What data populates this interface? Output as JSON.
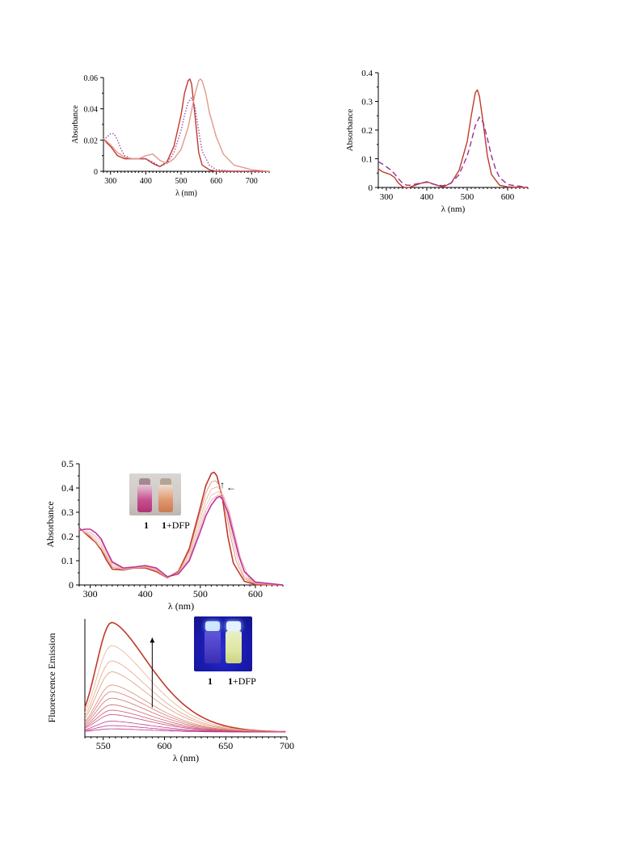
{
  "charts": [
    {
      "id": "p1",
      "chart_data": {
        "type": "line",
        "title": "",
        "xlabel": "λ (nm)",
        "ylabel": "Absorbance",
        "xlim": [
          280,
          750
        ],
        "ylim": [
          0,
          0.06
        ],
        "xticks": [
          300,
          400,
          500,
          600,
          700
        ],
        "yticks": [
          0,
          0.02,
          0.04,
          0.06
        ],
        "ytick_labels": [
          "0",
          "0.02",
          "0.04",
          "0.06"
        ],
        "series": [
          {
            "color": "#c0392b",
            "style": "solid",
            "x": [
              280,
              290,
              300,
              310,
              320,
              330,
              340,
              360,
              380,
              400,
              420,
              440,
              460,
              480,
              500,
              510,
              520,
              525,
              530,
              540,
              550,
              560,
              580,
              600,
              650,
              700,
              750
            ],
            "y": [
              0.021,
              0.018,
              0.016,
              0.013,
              0.01,
              0.009,
              0.008,
              0.008,
              0.008,
              0.008,
              0.005,
              0.003,
              0.006,
              0.016,
              0.036,
              0.05,
              0.058,
              0.059,
              0.056,
              0.035,
              0.012,
              0.004,
              0.001,
              0.0,
              0.0,
              0.0,
              0.0
            ]
          },
          {
            "color": "#a04aa0",
            "style": "dotted",
            "x": [
              280,
              290,
              300,
              310,
              320,
              330,
              340,
              360,
              380,
              400,
              420,
              440,
              460,
              480,
              500,
              510,
              520,
              530,
              540,
              550,
              560,
              580,
              600,
              650,
              700,
              750
            ],
            "y": [
              0.02,
              0.022,
              0.024,
              0.024,
              0.02,
              0.014,
              0.01,
              0.008,
              0.008,
              0.008,
              0.006,
              0.003,
              0.005,
              0.012,
              0.026,
              0.036,
              0.044,
              0.047,
              0.041,
              0.026,
              0.013,
              0.004,
              0.001,
              0.0,
              0.0,
              0.0
            ]
          },
          {
            "color": "#e29a8c",
            "style": "solid",
            "x": [
              280,
              290,
              300,
              320,
              340,
              360,
              380,
              400,
              420,
              440,
              460,
              480,
              500,
              520,
              540,
              550,
              555,
              560,
              570,
              580,
              600,
              620,
              650,
              700,
              750
            ],
            "y": [
              0.021,
              0.019,
              0.017,
              0.012,
              0.009,
              0.008,
              0.008,
              0.01,
              0.011,
              0.007,
              0.005,
              0.008,
              0.014,
              0.028,
              0.05,
              0.058,
              0.059,
              0.058,
              0.05,
              0.038,
              0.022,
              0.011,
              0.004,
              0.001,
              0.0
            ]
          }
        ]
      }
    },
    {
      "id": "p2",
      "chart_data": {
        "type": "line",
        "title": "",
        "xlabel": "λ (nm)",
        "ylabel": "Absorbance",
        "xlim": [
          280,
          650
        ],
        "ylim": [
          0,
          0.4
        ],
        "xticks": [
          300,
          400,
          500,
          600
        ],
        "yticks": [
          0,
          0.1,
          0.2,
          0.3,
          0.4
        ],
        "ytick_labels": [
          "0",
          "0.1",
          "0.2",
          "0.3",
          "0.4"
        ],
        "series": [
          {
            "color": "#c0392b",
            "style": "solid",
            "x": [
              280,
              290,
              300,
              310,
              320,
              330,
              340,
              350,
              360,
              380,
              400,
              420,
              440,
              460,
              480,
              500,
              510,
              520,
              525,
              530,
              540,
              550,
              560,
              580,
              600,
              650
            ],
            "y": [
              0.065,
              0.055,
              0.05,
              0.045,
              0.035,
              0.015,
              0.003,
              -0.002,
              0.002,
              0.012,
              0.02,
              0.01,
              0.002,
              0.015,
              0.06,
              0.16,
              0.25,
              0.33,
              0.34,
              0.32,
              0.22,
              0.11,
              0.045,
              0.008,
              0.002,
              0.0
            ]
          },
          {
            "color": "#9b2f9b",
            "style": "dashed",
            "x": [
              280,
              290,
              300,
              310,
              320,
              330,
              340,
              350,
              360,
              380,
              400,
              420,
              440,
              460,
              480,
              500,
              510,
              520,
              530,
              540,
              550,
              560,
              570,
              580,
              600,
              650
            ],
            "y": [
              0.09,
              0.082,
              0.072,
              0.062,
              0.048,
              0.03,
              0.015,
              0.008,
              0.008,
              0.014,
              0.018,
              0.01,
              0.006,
              0.015,
              0.045,
              0.11,
              0.16,
              0.215,
              0.245,
              0.225,
              0.17,
              0.11,
              0.065,
              0.035,
              0.01,
              0.0
            ]
          }
        ]
      }
    },
    {
      "id": "p3",
      "chart_data": {
        "type": "line",
        "title": "",
        "xlabel": "λ (nm)",
        "ylabel": "Absorbance",
        "xlim": [
          280,
          650
        ],
        "ylim": [
          0,
          0.5
        ],
        "xticks": [
          300,
          400,
          500,
          600
        ],
        "yticks": [
          0,
          0.1,
          0.2,
          0.3,
          0.4,
          0.5
        ],
        "ytick_labels": [
          "0",
          "0.1",
          "0.2",
          "0.3",
          "0.4",
          "0.5"
        ],
        "series": [
          {
            "color": "#c0392b",
            "style": "solid",
            "width": 1.6,
            "x": [
              280,
              290,
              300,
              310,
              320,
              330,
              340,
              360,
              380,
              400,
              420,
              440,
              460,
              480,
              500,
              510,
              520,
              525,
              530,
              540,
              550,
              560,
              580,
              600,
              650
            ],
            "y": [
              0.235,
              0.215,
              0.195,
              0.175,
              0.145,
              0.1,
              0.065,
              0.062,
              0.07,
              0.07,
              0.055,
              0.03,
              0.055,
              0.15,
              0.32,
              0.41,
              0.46,
              0.465,
              0.45,
              0.36,
              0.2,
              0.09,
              0.015,
              0.002,
              0.0
            ]
          },
          {
            "color": "#d8896f",
            "style": "solid",
            "width": 0.8,
            "x": [
              280,
              300,
              320,
              340,
              360,
              380,
              400,
              420,
              440,
              460,
              480,
              500,
              510,
              520,
              528,
              535,
              545,
              555,
              565,
              580,
              600,
              650
            ],
            "y": [
              0.232,
              0.2,
              0.15,
              0.072,
              0.063,
              0.07,
              0.072,
              0.058,
              0.03,
              0.052,
              0.14,
              0.3,
              0.38,
              0.425,
              0.43,
              0.41,
              0.32,
              0.2,
              0.1,
              0.025,
              0.004,
              0.0
            ]
          },
          {
            "color": "#e6ad94",
            "style": "solid",
            "width": 0.8,
            "x": [
              280,
              300,
              320,
              340,
              360,
              380,
              400,
              420,
              440,
              460,
              480,
              500,
              510,
              520,
              530,
              538,
              548,
              558,
              568,
              580,
              600,
              650
            ],
            "y": [
              0.23,
              0.205,
              0.16,
              0.078,
              0.064,
              0.071,
              0.074,
              0.061,
              0.031,
              0.05,
              0.128,
              0.275,
              0.35,
              0.395,
              0.405,
              0.39,
              0.31,
              0.2,
              0.105,
              0.032,
              0.006,
              0.0
            ]
          },
          {
            "color": "#e9bfa6",
            "style": "solid",
            "width": 0.8,
            "x": [
              280,
              300,
              320,
              340,
              360,
              380,
              400,
              420,
              440,
              460,
              480,
              500,
              510,
              520,
              532,
              542,
              552,
              562,
              572,
              585,
              600,
              650
            ],
            "y": [
              0.228,
              0.21,
              0.17,
              0.085,
              0.066,
              0.072,
              0.076,
              0.064,
              0.032,
              0.048,
              0.118,
              0.255,
              0.325,
              0.37,
              0.385,
              0.37,
              0.3,
              0.2,
              0.108,
              0.03,
              0.008,
              0.0
            ]
          },
          {
            "color": "#e49ab5",
            "style": "solid",
            "width": 0.8,
            "x": [
              280,
              300,
              320,
              340,
              360,
              380,
              400,
              420,
              440,
              460,
              480,
              500,
              510,
              520,
              533,
              543,
              553,
              563,
              573,
              588,
              600,
              650
            ],
            "y": [
              0.227,
              0.218,
              0.182,
              0.092,
              0.068,
              0.073,
              0.078,
              0.067,
              0.033,
              0.046,
              0.108,
              0.238,
              0.305,
              0.35,
              0.372,
              0.36,
              0.3,
              0.205,
              0.112,
              0.03,
              0.01,
              0.0
            ]
          },
          {
            "color": "#c0329a",
            "style": "solid",
            "width": 1.6,
            "x": [
              280,
              290,
              300,
              310,
              320,
              330,
              340,
              360,
              380,
              400,
              420,
              440,
              460,
              480,
              500,
              510,
              520,
              530,
              535,
              540,
              550,
              560,
              570,
              580,
              600,
              650
            ],
            "y": [
              0.225,
              0.23,
              0.23,
              0.215,
              0.19,
              0.14,
              0.095,
              0.07,
              0.074,
              0.08,
              0.07,
              0.034,
              0.045,
              0.1,
              0.22,
              0.285,
              0.33,
              0.36,
              0.365,
              0.355,
              0.3,
              0.21,
              0.12,
              0.055,
              0.012,
              0.0
            ]
          }
        ],
        "annotations": [
          "↑",
          "←"
        ]
      }
    },
    {
      "id": "p4",
      "chart_data": {
        "type": "line",
        "title": "",
        "xlabel": "λ (nm)",
        "ylabel": "Fluorescence Emission",
        "xlim": [
          535,
          700
        ],
        "ylim": [
          0,
          1.0
        ],
        "xticks": [
          550,
          600,
          650,
          700
        ],
        "yticks": [],
        "ytick_labels": [],
        "series_peak_heights": [
          1.0,
          0.79,
          0.65,
          0.55,
          0.43,
          0.37,
          0.31,
          0.25,
          0.2,
          0.16,
          0.1,
          0.06,
          0.03
        ],
        "series_colors": [
          "#c0392b",
          "#e7b38f",
          "#e3a586",
          "#df977d",
          "#db8a78",
          "#d77c74",
          "#d3706f",
          "#cf6370",
          "#cb5675",
          "#c64b7c",
          "#c24183",
          "#bd378b",
          "#b82e92"
        ],
        "peak_x": 557,
        "annotations": [
          "↑"
        ]
      }
    }
  ],
  "insets": {
    "top": {
      "labels": [
        "1",
        "1+DFP"
      ],
      "label_bold": "1",
      "label_rest": "+DFP"
    },
    "bottom": {
      "labels": [
        "1",
        "1+DFP"
      ],
      "label_bold": "1",
      "label_rest": "+DFP"
    }
  }
}
